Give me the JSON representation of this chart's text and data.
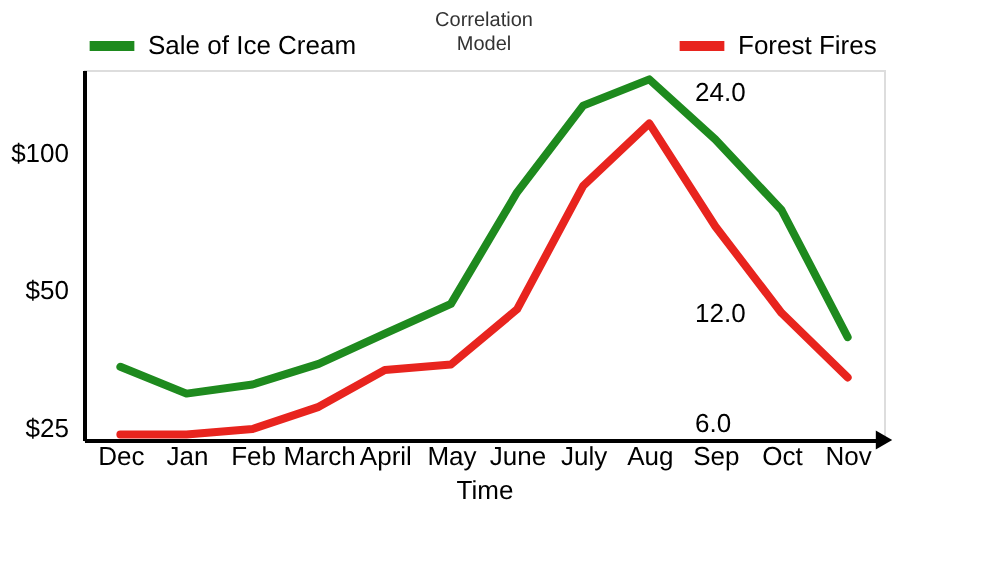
{
  "chart_data": {
    "type": "line",
    "title": "Correlation Model",
    "xlabel": "Time",
    "categories": [
      "Dec",
      "Jan",
      "Feb",
      "March",
      "April",
      "May",
      "June",
      "July",
      "Aug",
      "Sep",
      "Oct",
      "Nov"
    ],
    "ylim": [
      23.5,
      152
    ],
    "yticks": [
      {
        "value": 25,
        "label": "$25"
      },
      {
        "value": 50,
        "label": "$50"
      },
      {
        "value": 100,
        "label": "$100"
      }
    ],
    "y2lim": [
      5.1,
      25.2
    ],
    "y2ticks": [
      {
        "value": 6,
        "label": "6.0"
      },
      {
        "value": 12,
        "label": "12.0"
      },
      {
        "value": 24,
        "label": "24.0"
      }
    ],
    "log": "y",
    "legend": "top",
    "grid": false,
    "marker": "none",
    "line_style": "solid",
    "series": [
      {
        "name": "Sale of Ice Cream",
        "color": "#1e8a1e",
        "values": [
          34,
          29.7,
          31.1,
          34.5,
          40.2,
          46.7,
          82,
          127,
          145,
          107,
          75,
          39.5
        ]
      },
      {
        "name": "Forest Fires",
        "color": "#e8241e",
        "axis": "y2",
        "values": [
          5.4,
          5.4,
          5.7,
          6.9,
          8.9,
          9.2,
          12.2,
          18.9,
          22.3,
          16.7,
          12.0,
          8.5
        ]
      }
    ]
  }
}
